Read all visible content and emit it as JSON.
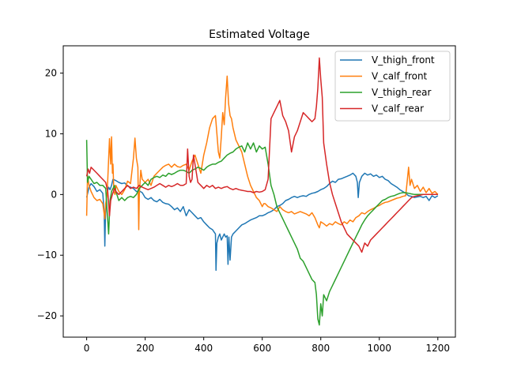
{
  "chart_data": {
    "type": "line",
    "title": "Estimated Voltage",
    "xlabel": "",
    "ylabel": "",
    "xlim": [
      -80,
      1260
    ],
    "ylim": [
      -23.5,
      24.5
    ],
    "x_ticks": [
      0,
      200,
      400,
      600,
      800,
      1000,
      1200
    ],
    "y_ticks": [
      -20,
      -10,
      0,
      10,
      20
    ],
    "grid": false,
    "legend": "top-right",
    "series": [
      {
        "name": "V_thigh_front",
        "color": "#1f77b4",
        "x": [
          0,
          8,
          15,
          25,
          35,
          45,
          55,
          60,
          62,
          64,
          68,
          75,
          80,
          85,
          90,
          100,
          110,
          120,
          130,
          140,
          150,
          160,
          170,
          180,
          190,
          200,
          210,
          220,
          230,
          240,
          250,
          260,
          270,
          280,
          290,
          300,
          310,
          320,
          330,
          340,
          350,
          360,
          370,
          380,
          390,
          400,
          410,
          420,
          430,
          440,
          442,
          445,
          450,
          455,
          460,
          465,
          470,
          475,
          480,
          483,
          486,
          490,
          495,
          500,
          510,
          520,
          530,
          540,
          550,
          560,
          570,
          580,
          590,
          600,
          610,
          620,
          630,
          640,
          650,
          660,
          670,
          680,
          690,
          700,
          710,
          720,
          730,
          740,
          750,
          760,
          770,
          780,
          790,
          800,
          810,
          820,
          830,
          840,
          850,
          860,
          870,
          880,
          890,
          900,
          910,
          920,
          925,
          928,
          932,
          940,
          950,
          960,
          970,
          980,
          990,
          1000,
          1010,
          1020,
          1030,
          1040,
          1050,
          1060,
          1070,
          1080,
          1090,
          1100,
          1110,
          1120,
          1130,
          1140,
          1150,
          1160,
          1170,
          1180,
          1190,
          1200
        ],
        "y": [
          -0.5,
          1.2,
          1.8,
          1.3,
          0.5,
          0.8,
          0.2,
          -3,
          -8.5,
          -4,
          0,
          1.2,
          0.8,
          1.5,
          2.5,
          2.3,
          2.0,
          1.8,
          1.9,
          1.4,
          1.2,
          1.0,
          0.5,
          0.6,
          0.3,
          -0.5,
          -0.8,
          -0.5,
          -1.0,
          -1.2,
          -0.8,
          -1.3,
          -1.5,
          -1.6,
          -2.0,
          -2.5,
          -2.2,
          -2.8,
          -2.0,
          -3.5,
          -2.5,
          -3.0,
          -3.5,
          -4.0,
          -3.8,
          -4.5,
          -5.0,
          -5.5,
          -5.8,
          -6.5,
          -12.5,
          -8.0,
          -7.0,
          -6.5,
          -7.5,
          -7.0,
          -6.5,
          -7.0,
          -6.8,
          -11.5,
          -7.0,
          -10.8,
          -7.0,
          -6.5,
          -6.0,
          -5.5,
          -5.0,
          -4.8,
          -4.5,
          -4.2,
          -4.0,
          -3.8,
          -3.5,
          -3.5,
          -3.3,
          -3.0,
          -2.8,
          -2.5,
          -2.0,
          -1.8,
          -1.5,
          -1.0,
          -0.8,
          -0.5,
          -0.3,
          -0.5,
          -0.3,
          -0.2,
          -0.3,
          0.0,
          0.2,
          0.3,
          0.5,
          0.8,
          1.0,
          1.3,
          1.8,
          2.2,
          2.0,
          2.5,
          2.6,
          2.8,
          3.0,
          3.2,
          3.5,
          3.0,
          2.0,
          -0.5,
          2.0,
          3.0,
          3.5,
          3.2,
          3.4,
          3.0,
          3.2,
          2.8,
          3.0,
          2.5,
          2.3,
          1.8,
          1.5,
          1.2,
          0.8,
          0.5,
          0.2,
          -0.2,
          -0.3,
          -0.5,
          -0.4,
          -0.3,
          -0.5,
          -0.3,
          -1.0,
          -0.2,
          -0.5,
          -0.2
        ]
      },
      {
        "name": "V_calf_front",
        "color": "#ff7f0e",
        "x": [
          0,
          3,
          8,
          15,
          25,
          35,
          45,
          55,
          62,
          65,
          70,
          78,
          82,
          85,
          88,
          90,
          93,
          97,
          100,
          110,
          120,
          130,
          140,
          150,
          160,
          165,
          170,
          175,
          178,
          180,
          185,
          190,
          200,
          210,
          220,
          230,
          240,
          250,
          260,
          270,
          280,
          290,
          300,
          310,
          320,
          330,
          340,
          350,
          360,
          370,
          380,
          390,
          400,
          410,
          420,
          430,
          440,
          450,
          455,
          460,
          465,
          470,
          475,
          480,
          485,
          490,
          495,
          500,
          510,
          520,
          530,
          540,
          550,
          560,
          570,
          580,
          590,
          600,
          605,
          610,
          620,
          630,
          640,
          650,
          660,
          670,
          680,
          690,
          700,
          710,
          720,
          730,
          740,
          750,
          760,
          770,
          780,
          790,
          795,
          800,
          810,
          820,
          830,
          840,
          850,
          860,
          870,
          880,
          890,
          900,
          910,
          920,
          930,
          940,
          950,
          960,
          970,
          980,
          990,
          1000,
          1010,
          1020,
          1030,
          1040,
          1050,
          1060,
          1070,
          1080,
          1090,
          1095,
          1100,
          1105,
          1110,
          1120,
          1130,
          1140,
          1150,
          1160,
          1170,
          1180,
          1190,
          1200
        ],
        "y": [
          -3.5,
          3.0,
          1.5,
          0.5,
          -0.5,
          -1.0,
          -0.8,
          -1.5,
          -4.0,
          -1.5,
          0.0,
          9.2,
          5.0,
          9.5,
          3.5,
          5.0,
          0.5,
          0.0,
          1.5,
          0.5,
          0.0,
          0.8,
          2.2,
          1.8,
          6.0,
          9.3,
          6.0,
          4.5,
          -5.8,
          0.0,
          4.0,
          2.5,
          2.0,
          2.5,
          1.5,
          3.0,
          3.5,
          4.0,
          4.5,
          4.8,
          5.0,
          4.5,
          5.0,
          4.6,
          4.5,
          4.8,
          5.0,
          4.0,
          5.5,
          6.5,
          5.0,
          3.5,
          6.5,
          8.5,
          11.0,
          12.5,
          13.0,
          7.0,
          6.0,
          9.5,
          13.5,
          11.5,
          16.0,
          19.5,
          15.0,
          13.0,
          12.5,
          11.0,
          9.0,
          8.0,
          7.0,
          5.0,
          3.0,
          1.5,
          0.5,
          -0.5,
          -1.0,
          -2.0,
          -1.5,
          -1.5,
          -2.0,
          -2.2,
          -2.5,
          -2.8,
          -2.0,
          -2.5,
          -2.8,
          -3.0,
          -2.8,
          -3.2,
          -3.0,
          -2.8,
          -3.0,
          -3.2,
          -3.5,
          -3.0,
          -3.8,
          -5.0,
          -5.5,
          -4.5,
          -4.8,
          -5.2,
          -4.8,
          -5.0,
          -4.5,
          -4.8,
          -5.0,
          -4.5,
          -4.8,
          -4.2,
          -4.5,
          -3.8,
          -3.5,
          -3.0,
          -3.2,
          -2.8,
          -2.5,
          -2.3,
          -2.0,
          -1.8,
          -1.5,
          -1.3,
          -1.2,
          -1.0,
          -0.8,
          -0.6,
          -0.5,
          -0.3,
          -0.2,
          2.0,
          4.5,
          1.5,
          2.5,
          1.0,
          1.5,
          0.5,
          1.2,
          0.3,
          1.0,
          0.2,
          0.5,
          0.0
        ]
      },
      {
        "name": "V_thigh_rear",
        "color": "#2ca02c",
        "x": [
          0,
          3,
          8,
          15,
          25,
          35,
          45,
          55,
          65,
          75,
          80,
          85,
          90,
          95,
          100,
          110,
          120,
          130,
          140,
          150,
          160,
          170,
          180,
          190,
          200,
          210,
          220,
          230,
          240,
          250,
          260,
          270,
          280,
          290,
          300,
          310,
          320,
          330,
          340,
          350,
          360,
          370,
          380,
          390,
          400,
          410,
          420,
          430,
          440,
          450,
          460,
          470,
          480,
          490,
          500,
          510,
          520,
          530,
          540,
          550,
          560,
          570,
          580,
          590,
          600,
          610,
          620,
          630,
          640,
          650,
          660,
          670,
          680,
          690,
          700,
          710,
          720,
          730,
          740,
          750,
          760,
          770,
          780,
          785,
          790,
          795,
          800,
          805,
          810,
          820,
          830,
          840,
          850,
          860,
          870,
          880,
          890,
          900,
          910,
          920,
          930,
          940,
          950,
          960,
          970,
          980,
          990,
          1000,
          1010,
          1020,
          1030,
          1040,
          1050,
          1060,
          1070,
          1080,
          1090,
          1100,
          1110,
          1120,
          1130,
          1140,
          1150,
          1160,
          1170,
          1180,
          1190,
          1200
        ],
        "y": [
          9.0,
          2.0,
          3.0,
          2.5,
          1.8,
          2.0,
          1.5,
          1.5,
          1.0,
          -6.5,
          -1.0,
          0.5,
          1.0,
          1.5,
          0.5,
          -1.0,
          -0.5,
          -1.0,
          -0.5,
          -0.3,
          -0.5,
          0.0,
          1.0,
          1.5,
          2.0,
          1.5,
          2.5,
          2.8,
          3.0,
          2.8,
          3.2,
          3.0,
          3.5,
          3.3,
          3.5,
          3.8,
          4.0,
          4.0,
          3.8,
          3.5,
          4.0,
          4.2,
          4.5,
          4.3,
          4.0,
          4.5,
          4.8,
          5.0,
          5.0,
          5.3,
          5.5,
          6.0,
          6.5,
          6.8,
          7.0,
          7.5,
          7.8,
          8.0,
          7.0,
          8.5,
          7.5,
          8.5,
          7.0,
          8.0,
          7.5,
          7.8,
          5.0,
          1.5,
          0.0,
          -2.0,
          -3.0,
          -4.0,
          -5.0,
          -6.0,
          -7.0,
          -8.0,
          -9.0,
          -10.5,
          -11.0,
          -12.0,
          -13.0,
          -14.0,
          -14.5,
          -16.5,
          -20.5,
          -21.5,
          -18.0,
          -20.0,
          -16.5,
          -17.5,
          -16.0,
          -15.0,
          -14.0,
          -13.0,
          -12.0,
          -11.0,
          -10.0,
          -9.0,
          -8.0,
          -7.0,
          -6.0,
          -5.0,
          -4.2,
          -3.5,
          -3.0,
          -2.5,
          -2.0,
          -1.5,
          -1.0,
          -0.8,
          -0.5,
          -0.3,
          -0.2,
          0.0,
          0.2,
          0.3,
          0.3,
          0.2,
          0.1,
          0.0,
          0.0,
          0.0,
          0.0,
          0.0,
          0.0,
          0.0,
          0.0,
          0.0
        ]
      },
      {
        "name": "V_calf_rear",
        "color": "#d62728",
        "x": [
          0,
          5,
          10,
          15,
          25,
          35,
          45,
          55,
          65,
          72,
          78,
          82,
          88,
          95,
          100,
          110,
          120,
          130,
          140,
          150,
          160,
          170,
          180,
          190,
          200,
          210,
          220,
          230,
          240,
          250,
          260,
          270,
          280,
          290,
          300,
          310,
          320,
          330,
          340,
          345,
          350,
          355,
          360,
          365,
          370,
          380,
          390,
          400,
          410,
          420,
          430,
          440,
          450,
          460,
          470,
          480,
          490,
          500,
          510,
          520,
          530,
          540,
          550,
          560,
          570,
          580,
          590,
          600,
          610,
          620,
          630,
          640,
          650,
          660,
          670,
          680,
          690,
          700,
          710,
          720,
          730,
          740,
          750,
          760,
          770,
          780,
          785,
          790,
          795,
          800,
          805,
          810,
          820,
          830,
          840,
          850,
          860,
          870,
          880,
          890,
          900,
          910,
          920,
          930,
          940,
          950,
          960,
          970,
          980,
          990,
          1000,
          1010,
          1020,
          1030,
          1040,
          1050,
          1060,
          1070,
          1080,
          1090,
          1100,
          1110,
          1120,
          1130,
          1140,
          1150,
          1160,
          1170,
          1180,
          1190,
          1200
        ],
        "y": [
          3.0,
          4.2,
          3.5,
          4.5,
          4.0,
          3.5,
          3.0,
          2.5,
          2.0,
          0.5,
          -3.5,
          -1.0,
          0.0,
          1.0,
          0.5,
          0.0,
          0.5,
          1.0,
          1.5,
          1.0,
          1.2,
          1.0,
          1.5,
          1.2,
          1.0,
          0.8,
          1.0,
          1.2,
          1.5,
          1.8,
          1.5,
          1.2,
          1.5,
          1.3,
          1.5,
          1.8,
          1.5,
          1.5,
          1.8,
          7.5,
          3.0,
          2.0,
          2.5,
          6.5,
          5.0,
          2.0,
          1.5,
          1.0,
          1.5,
          1.2,
          1.5,
          1.0,
          1.2,
          1.0,
          1.2,
          1.3,
          1.0,
          0.8,
          1.0,
          0.8,
          0.7,
          0.6,
          0.5,
          0.5,
          0.3,
          0.5,
          0.4,
          0.5,
          0.8,
          2.5,
          12.5,
          13.5,
          14.5,
          15.5,
          13.0,
          12.0,
          10.5,
          7.0,
          9.5,
          10.5,
          12.0,
          13.5,
          13.0,
          12.5,
          12.0,
          12.5,
          14.5,
          17.5,
          22.5,
          19.0,
          16.0,
          8.5,
          5.0,
          2.0,
          0.0,
          -1.5,
          -3.0,
          -4.5,
          -5.5,
          -6.5,
          -7.0,
          -7.5,
          -8.0,
          -8.5,
          -9.5,
          -8.0,
          -8.5,
          -7.5,
          -7.0,
          -6.5,
          -6.0,
          -5.5,
          -5.0,
          -4.5,
          -4.0,
          -3.5,
          -3.0,
          -2.5,
          -2.0,
          -1.5,
          -1.0,
          -0.5,
          -0.3,
          -0.2,
          -0.1,
          0.0,
          0.0,
          0.0,
          0.0,
          0.0,
          0.0
        ]
      }
    ]
  }
}
